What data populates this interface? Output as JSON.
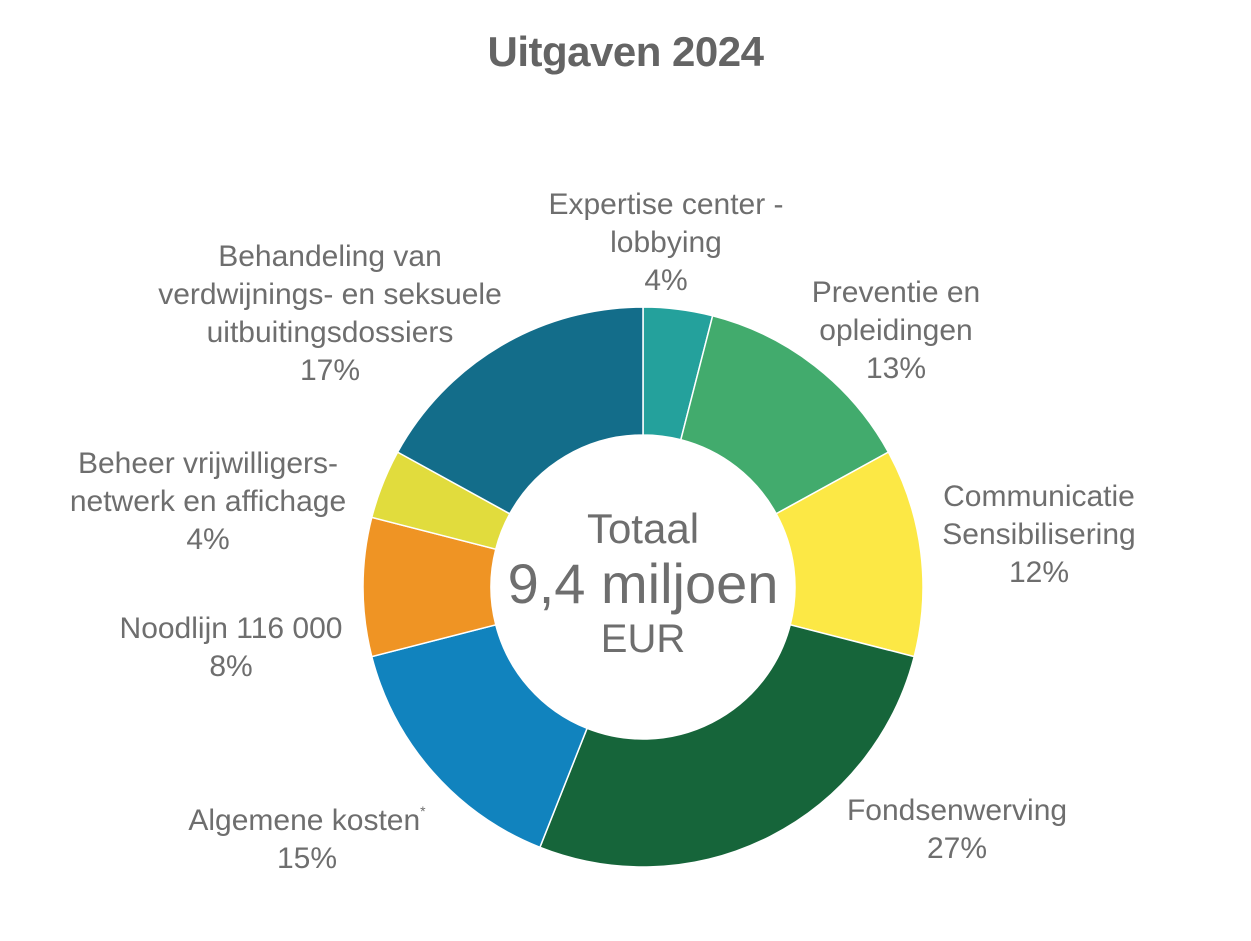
{
  "chart_data": {
    "type": "pie",
    "title": "Uitgaven 2024",
    "center_text": {
      "line1": "Totaal",
      "line2": "9,4 miljoen",
      "line3": "EUR"
    },
    "slices": [
      {
        "label": [
          "Expertise center -",
          "lobbying"
        ],
        "value": 4,
        "display": "4%",
        "color": "#24A19C"
      },
      {
        "label": [
          "Preventie en",
          "opleidingen"
        ],
        "value": 13,
        "display": "13%",
        "color": "#42AB6D"
      },
      {
        "label": [
          "Communicatie",
          "Sensibilisering"
        ],
        "value": 12,
        "display": "12%",
        "color": "#FCE845"
      },
      {
        "label": [
          "Fondsenwerving"
        ],
        "value": 27,
        "display": "27%",
        "color": "#16653A"
      },
      {
        "label": [
          "Algemene kosten"
        ],
        "label_sup": "*",
        "value": 15,
        "display": "15%",
        "color": "#1183BE"
      },
      {
        "label": [
          "Noodlijn 116 000"
        ],
        "value": 8,
        "display": "8%",
        "color": "#EF9424"
      },
      {
        "label": [
          "Beheer vrijwilligers-",
          "netwerk en affichage"
        ],
        "value": 4,
        "display": "4%",
        "color": "#E1DC3D"
      },
      {
        "label": [
          "Behandeling van",
          "verdwijnings- en seksuele",
          "uitbuitingsdossiers"
        ],
        "value": 17,
        "display": "17%",
        "color": "#136D8A"
      }
    ]
  }
}
